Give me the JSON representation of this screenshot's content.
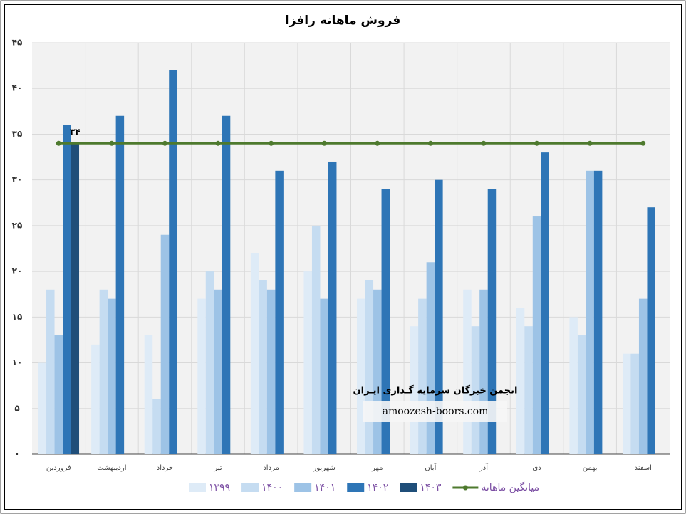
{
  "chart_data": {
    "type": "bar",
    "title": "فروش ماهانه رافزا",
    "categories": [
      "فروردین",
      "اردیبهشت",
      "خرداد",
      "تیر",
      "مرداد",
      "شهریور",
      "مهر",
      "آبان",
      "آذر",
      "دی",
      "بهمن",
      "اسفند"
    ],
    "series": [
      {
        "name": "۱۳۹۹",
        "color": "#deebf7",
        "values": [
          10,
          12,
          13,
          17,
          22,
          20,
          17,
          14,
          18,
          16,
          15,
          11
        ]
      },
      {
        "name": "۱۴۰۰",
        "color": "#c5dcf1",
        "values": [
          18,
          18,
          6,
          20,
          19,
          25,
          19,
          17,
          14,
          14,
          13,
          11
        ]
      },
      {
        "name": "۱۴۰۱",
        "color": "#9dc3e6",
        "values": [
          13,
          17,
          24,
          18,
          18,
          17,
          18,
          21,
          18,
          26,
          31,
          17
        ]
      },
      {
        "name": "۱۴۰۲",
        "color": "#2e75b6",
        "values": [
          36,
          37,
          42,
          37,
          31,
          32,
          29,
          30,
          29,
          33,
          31,
          27
        ]
      },
      {
        "name": "۱۴۰۳",
        "color": "#1f4e79",
        "values": [
          34,
          null,
          null,
          null,
          null,
          null,
          null,
          null,
          null,
          null,
          null,
          null
        ],
        "value_labels": [
          "۳۴",
          null,
          null,
          null,
          null,
          null,
          null,
          null,
          null,
          null,
          null,
          null
        ]
      },
      {
        "name": "میانگین ماهانه",
        "type": "line",
        "color": "#4e7a2e",
        "values": [
          34,
          34,
          34,
          34,
          34,
          34,
          34,
          34,
          34,
          34,
          34,
          34
        ]
      }
    ],
    "ylim": [
      0,
      45
    ],
    "yticks": [
      {
        "value": 0,
        "label": "٠"
      },
      {
        "value": 5,
        "label": "۵"
      },
      {
        "value": 10,
        "label": "۱۰"
      },
      {
        "value": 15,
        "label": "۱۵"
      },
      {
        "value": 20,
        "label": "۲۰"
      },
      {
        "value": 25,
        "label": "۲۵"
      },
      {
        "value": 30,
        "label": "۳۰"
      },
      {
        "value": 35,
        "label": "۳۵"
      },
      {
        "value": 40,
        "label": "۴۰"
      },
      {
        "value": 45,
        "label": "۴۵"
      }
    ],
    "grid": true,
    "legend": "bottom",
    "annotations": [
      "انجمن خبرگان سرمایه گـذاری ایـران",
      "amoozesh-boors.com"
    ]
  }
}
